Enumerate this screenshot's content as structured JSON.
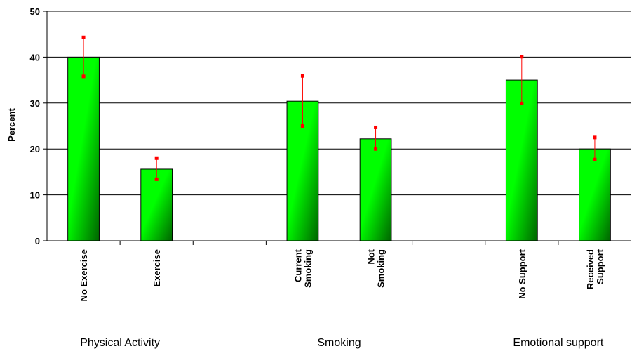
{
  "chart_data": {
    "type": "bar",
    "title": "",
    "xlabel": "",
    "ylabel": "Percent",
    "ylim": [
      0,
      50
    ],
    "yticks": [
      0,
      10,
      20,
      30,
      40,
      50
    ],
    "grid": true,
    "legend": "none",
    "colors": {
      "bar_light": "#00ff00",
      "bar_dark": "#006400",
      "error_bar": "#ff0000",
      "grid": "#000000"
    },
    "groups": [
      {
        "label": "Physical Activity",
        "categories": [
          {
            "label": [
              "No Exercise"
            ],
            "value": 40,
            "error_low": 35.8,
            "error_high": 44.3
          },
          {
            "label": [
              "Exercise"
            ],
            "value": 15.6,
            "error_low": 13.4,
            "error_high": 18
          }
        ]
      },
      {
        "label": "Smoking",
        "categories": [
          {
            "label": [
              "Current",
              "Smoking"
            ],
            "value": 30.4,
            "error_low": 25,
            "error_high": 35.9
          },
          {
            "label": [
              "Not",
              "Smoking"
            ],
            "value": 22.2,
            "error_low": 20,
            "error_high": 24.7
          }
        ]
      },
      {
        "label": "Emotional support",
        "categories": [
          {
            "label": [
              "No Support"
            ],
            "value": 35,
            "error_low": 29.9,
            "error_high": 40.1
          },
          {
            "label": [
              "Received",
              "Support"
            ],
            "value": 20,
            "error_low": 17.7,
            "error_high": 22.5
          }
        ]
      }
    ]
  }
}
